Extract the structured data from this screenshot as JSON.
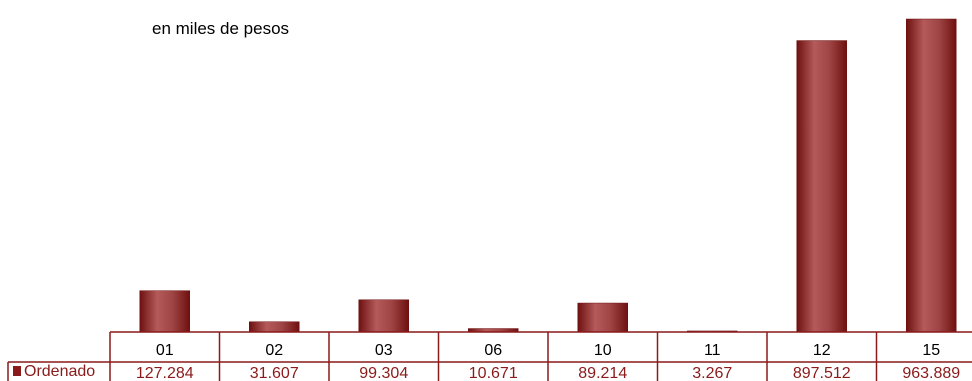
{
  "chart_data": {
    "type": "bar",
    "unit_label": "en miles de pesos",
    "categories": [
      "01",
      "02",
      "03",
      "06",
      "10",
      "11",
      "12",
      "15"
    ],
    "series": [
      {
        "name": "Ordenado",
        "values": [
          127284,
          31607,
          99304,
          10671,
          89214,
          3267,
          897512,
          963889
        ],
        "value_labels": [
          "127.284",
          "31.607",
          "99.304",
          "10.671",
          "89.214",
          "3.267",
          "897.512",
          "963.889"
        ],
        "color": "#8B1A1A"
      }
    ],
    "ylim": [
      0,
      963889
    ],
    "legend": "data-table-left",
    "grid": false,
    "colors": {
      "bar": "#8B1A1A",
      "bar_highlight": "#B45A5A",
      "table_border": "#8B1A1A"
    }
  }
}
